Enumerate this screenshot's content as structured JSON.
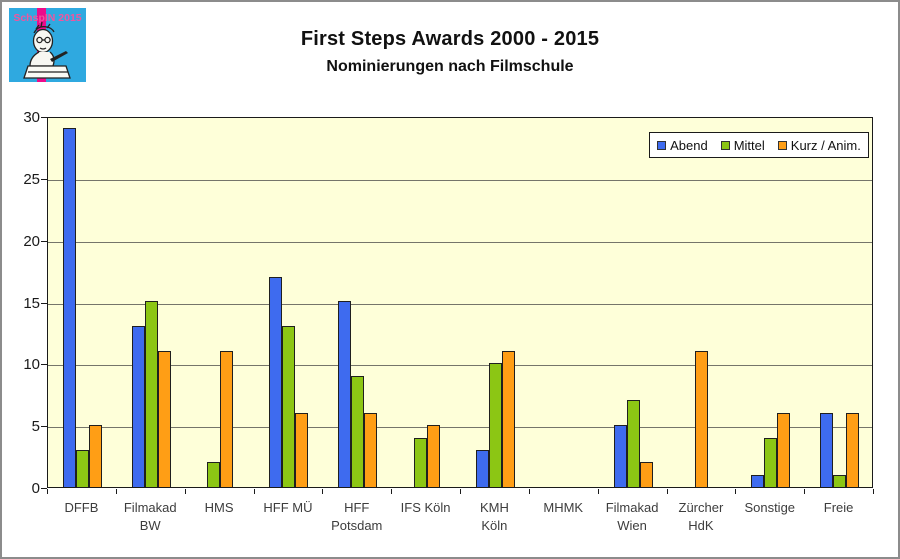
{
  "logo": {
    "text": "SchspIN 2015",
    "bg_color": "#2FA9E0",
    "stripe_color": "#EC0C8B",
    "text_color": "#F0559E"
  },
  "header": {
    "title": "First Steps Awards 2000 - 2015",
    "subtitle": "Nominierungen nach Filmschule"
  },
  "chart_data": {
    "type": "bar",
    "title": "First Steps Awards 2000 - 2015",
    "subtitle": "Nominierungen nach Filmschule",
    "categories": [
      "DFFB",
      "Filmakad\nBW",
      "HMS",
      "HFF MÜ",
      "HFF\nPotsdam",
      "IFS Köln",
      "KMH\nKöln",
      "MHMK",
      "Filmakad\nWien",
      "Zürcher\nHdK",
      "Sonstige",
      "Freie"
    ],
    "series": [
      {
        "name": "Abend",
        "color": "#3E6BEF",
        "values": [
          29,
          13,
          0,
          17,
          15,
          0,
          3,
          0,
          5,
          0,
          1,
          6
        ]
      },
      {
        "name": "Mittel",
        "color": "#8CC614",
        "values": [
          3,
          15,
          2,
          13,
          9,
          4,
          10,
          0,
          7,
          0,
          4,
          1
        ]
      },
      {
        "name": "Kurz / Anim.",
        "color": "#FF9E15",
        "values": [
          5,
          11,
          11,
          6,
          6,
          5,
          11,
          0,
          2,
          11,
          6,
          6
        ]
      }
    ],
    "ylim": [
      0,
      30
    ],
    "yticks": [
      0,
      5,
      10,
      15,
      20,
      25,
      30
    ],
    "grid": true,
    "legend_position": "top-right",
    "plot_bg": "#FEFFD9",
    "xlabel": "",
    "ylabel": ""
  }
}
